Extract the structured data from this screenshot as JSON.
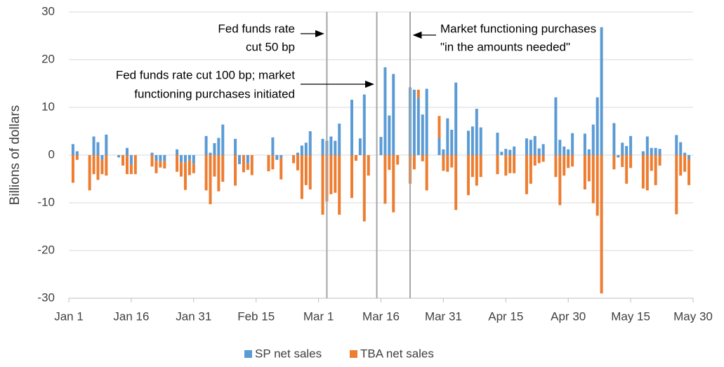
{
  "chart_data": {
    "type": "bar",
    "y_label": "Billions of dollars",
    "x": [
      1,
      2,
      5,
      6,
      7,
      8,
      9,
      12,
      13,
      14,
      15,
      16,
      20,
      21,
      22,
      23,
      26,
      27,
      28,
      29,
      30,
      33,
      34,
      35,
      36,
      37,
      40,
      41,
      42,
      43,
      44,
      48,
      49,
      50,
      51,
      54,
      55,
      56,
      57,
      58,
      61,
      62,
      63,
      64,
      65,
      68,
      69,
      70,
      71,
      72,
      75,
      76,
      77,
      78,
      79,
      82,
      83,
      84,
      85,
      86,
      89,
      90,
      91,
      92,
      93,
      96,
      97,
      98,
      99,
      103,
      104,
      105,
      106,
      107,
      110,
      111,
      112,
      113,
      114,
      117,
      118,
      119,
      120,
      121,
      124,
      125,
      126,
      127,
      128,
      131,
      132,
      133,
      134,
      135,
      138,
      139,
      140,
      141,
      142,
      146,
      147,
      148,
      149
    ],
    "series": [
      {
        "name": "SP net sales",
        "color": "#5b9bd5",
        "values": [
          2.3,
          0.8,
          0,
          3.9,
          2.7,
          -1,
          4.3,
          -0.5,
          0,
          1.5,
          -2,
          0,
          0.5,
          -1.2,
          -1.3,
          -1.3,
          1.2,
          -1.5,
          -1.5,
          -1,
          -1.8,
          4,
          0.5,
          2.5,
          3.6,
          6.4,
          3.4,
          -1.9,
          0,
          -1.8,
          0,
          0,
          3.7,
          -1,
          -0.6,
          0,
          0.5,
          2,
          2.6,
          5,
          3.4,
          3,
          3.9,
          3,
          6.6,
          11.6,
          0,
          3.5,
          12.7,
          0,
          3.8,
          18.4,
          8.3,
          17,
          0,
          14.2,
          13.7,
          12,
          8.5,
          13.9,
          3.6,
          1.2,
          7.7,
          5.3,
          15.2,
          5.1,
          6,
          9.7,
          5.8,
          4.7,
          0.7,
          1.3,
          1.1,
          1.8,
          3.5,
          3.2,
          4,
          1.4,
          2.3,
          12.1,
          3.2,
          1.8,
          1.2,
          4.6,
          4.5,
          1.2,
          6.4,
          12.1,
          26.8,
          6.7,
          -0.5,
          2.6,
          1.9,
          4,
          0.8,
          3.9,
          1.5,
          1.5,
          1.3,
          4.2,
          2.7,
          0.5,
          -0.8
        ]
      },
      {
        "name": "TBA net sales",
        "color": "#ed7d31",
        "values": [
          -5.8,
          -1,
          -7.4,
          -4,
          -5.2,
          -3,
          -4.3,
          0,
          -2.2,
          -4,
          -2,
          -4,
          -2.4,
          -2.6,
          -1.3,
          -1.5,
          -3.5,
          -3,
          -5.8,
          -3.2,
          -2,
          -7.4,
          -10.3,
          -4.5,
          -7.6,
          -5.6,
          -6.4,
          0,
          -3.6,
          -1.3,
          -4.2,
          -3.4,
          -3,
          0,
          -4.5,
          -1.7,
          -3.2,
          -9.2,
          -6.3,
          -7.2,
          -12.5,
          -9.7,
          -8.2,
          -7.9,
          -12.5,
          -9,
          -1.2,
          0,
          -13.9,
          -4.3,
          0,
          -10.2,
          -3.1,
          -12,
          -2,
          -6,
          -3,
          1.7,
          -1.3,
          -7.4,
          4.6,
          -3.3,
          -3.5,
          -2.6,
          -11.5,
          -8.4,
          -4.6,
          -6.4,
          -4.6,
          -4,
          0,
          -4.3,
          -3.8,
          -3.8,
          -8.2,
          -6,
          -2.2,
          -1.7,
          -1.4,
          -4.6,
          -10.5,
          -4.3,
          -2.7,
          -2.4,
          -7.2,
          -5.5,
          -10.1,
          -12.7,
          -29,
          -3,
          0,
          -2.5,
          -6,
          -2.7,
          -7,
          -7.4,
          -3.3,
          -6.3,
          -2.2,
          -12.4,
          -4.3,
          -3.5,
          -5.5
        ]
      }
    ],
    "xlim": [
      0,
      150
    ],
    "xticks": [
      {
        "value": 0,
        "label": "Jan 1"
      },
      {
        "value": 15,
        "label": "Jan 16"
      },
      {
        "value": 30,
        "label": "Jan 31"
      },
      {
        "value": 45,
        "label": "Feb 15"
      },
      {
        "value": 60,
        "label": "Mar 1"
      },
      {
        "value": 75,
        "label": "Mar 16"
      },
      {
        "value": 90,
        "label": "Mar 31"
      },
      {
        "value": 105,
        "label": "Apr 15"
      },
      {
        "value": 120,
        "label": "Apr 30"
      },
      {
        "value": 135,
        "label": "May 15"
      },
      {
        "value": 150,
        "label": "May 30"
      }
    ],
    "ylim": [
      -30,
      30
    ],
    "yticks": [
      -30,
      -20,
      -10,
      0,
      10,
      20,
      30
    ],
    "grid": true,
    "legend": "bottom",
    "annotations": [
      {
        "x": 62,
        "lines": [
          "Fed funds rate",
          "cut 50 bp"
        ]
      },
      {
        "x": 74,
        "lines": [
          "Fed funds rate cut 100 bp; market",
          "functioning purchases initiated"
        ]
      },
      {
        "x": 82,
        "lines": [
          "Market functioning purchases",
          "\"in the amounts needed\""
        ]
      }
    ]
  }
}
